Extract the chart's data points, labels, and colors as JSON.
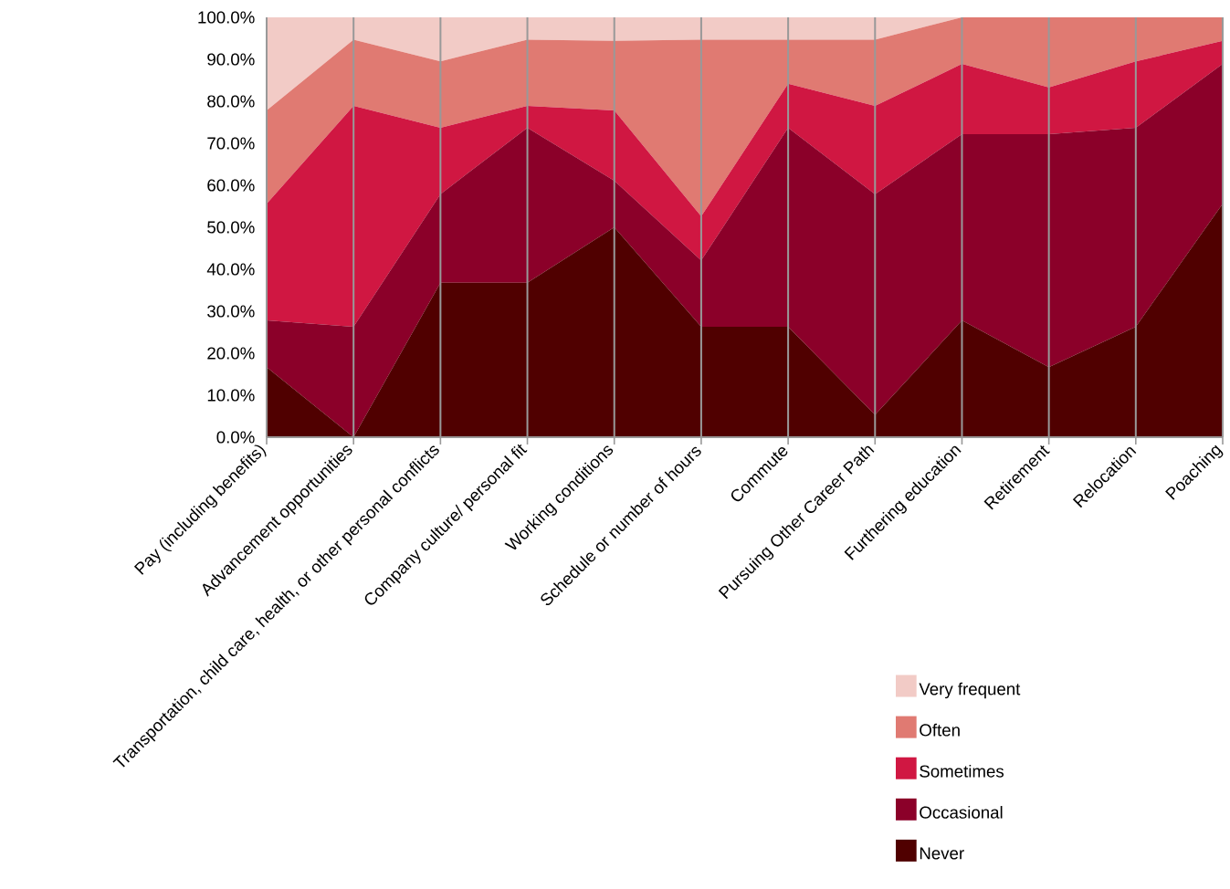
{
  "chart_data": {
    "type": "area",
    "stacked": true,
    "categories": [
      "Pay (including benefits)",
      "Advancement opportunities",
      "Transportation, child care, health, or other personal conflicts",
      "Company culture/ personal fit",
      "Working conditions",
      "Schedule or number of hours",
      "Commute",
      "Pursuing Other Career Path",
      "Furthering education",
      "Retirement",
      "Relocation",
      "Poaching"
    ],
    "series": [
      {
        "name": "Never",
        "color": "#500000",
        "values": [
          16.7,
          0,
          36.8,
          36.8,
          50,
          26.3,
          26.3,
          5.3,
          27.8,
          16.7,
          26.3,
          55.6
        ]
      },
      {
        "name": "Occasional",
        "color": "#8b0029",
        "values": [
          11.1,
          26.3,
          21.1,
          36.9,
          11.1,
          15.8,
          47.4,
          52.6,
          44.4,
          55.5,
          47.4,
          33.3
        ]
      },
      {
        "name": "Sometimes",
        "color": "#d01742",
        "values": [
          27.8,
          52.6,
          15.8,
          5.2,
          16.7,
          10.5,
          10.5,
          21.0,
          16.7,
          11.1,
          15.8,
          5.5
        ]
      },
      {
        "name": "Often",
        "color": "#e07a72",
        "values": [
          22.2,
          15.8,
          15.8,
          15.8,
          16.6,
          42.1,
          10.5,
          15.8,
          11.1,
          16.7,
          10.5,
          5.6
        ]
      },
      {
        "name": "Very frequent",
        "color": "#f2cbc6",
        "values": [
          22.2,
          5.3,
          10.5,
          5.3,
          5.6,
          5.3,
          5.3,
          5.3,
          0,
          0,
          0,
          0
        ]
      }
    ],
    "ylim": [
      0,
      100
    ],
    "yticks": [
      {
        "value": 0,
        "label": "0.0%"
      },
      {
        "value": 10,
        "label": "10.0%"
      },
      {
        "value": 20,
        "label": "20.0%"
      },
      {
        "value": 30,
        "label": "30.0%"
      },
      {
        "value": 40,
        "label": "40.0%"
      },
      {
        "value": 50,
        "label": "50.0%"
      },
      {
        "value": 60,
        "label": "60.0%"
      },
      {
        "value": 70,
        "label": "70.0%"
      },
      {
        "value": 80,
        "label": "80.0%"
      },
      {
        "value": 90,
        "label": "90.0%"
      },
      {
        "value": 100,
        "label": "100.0%"
      }
    ],
    "grid": "x",
    "legend": "bottom right"
  }
}
